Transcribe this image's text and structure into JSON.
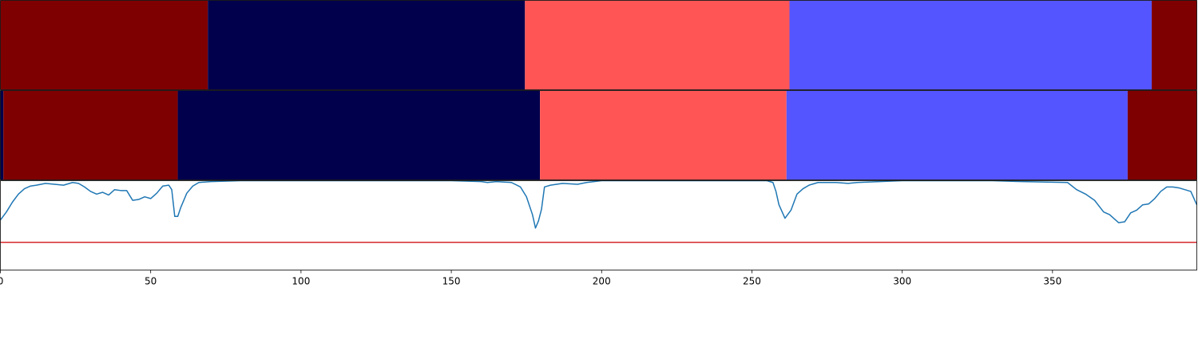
{
  "chart_data": [
    {
      "type": "heatmap",
      "panel": "ground-truth-segments",
      "xlim": [
        0,
        398
      ],
      "segments": [
        {
          "start": 0,
          "end": 69,
          "color": "#7f0000"
        },
        {
          "start": 69,
          "end": 174.5,
          "color": "#00004c"
        },
        {
          "start": 174.5,
          "end": 262.5,
          "color": "#ff5555"
        },
        {
          "start": 262.5,
          "end": 383,
          "color": "#5555ff"
        },
        {
          "start": 383,
          "end": 398,
          "color": "#7f0000"
        }
      ]
    },
    {
      "type": "heatmap",
      "panel": "predicted-segments",
      "xlim": [
        0,
        398
      ],
      "segments": [
        {
          "start": 0,
          "end": 1,
          "color": "#00004c"
        },
        {
          "start": 1,
          "end": 59,
          "color": "#7f0000"
        },
        {
          "start": 59,
          "end": 179.5,
          "color": "#00004c"
        },
        {
          "start": 179.5,
          "end": 261.5,
          "color": "#ff5555"
        },
        {
          "start": 261.5,
          "end": 375,
          "color": "#5555ff"
        },
        {
          "start": 375,
          "end": 398,
          "color": "#7f0000"
        }
      ]
    },
    {
      "type": "line",
      "panel": "confidence",
      "xlim": [
        0,
        398
      ],
      "ylim": [
        0,
        1
      ],
      "xticks": [
        0,
        50,
        100,
        150,
        200,
        250,
        300,
        350
      ],
      "threshold": {
        "value": 0.31,
        "color": "#d62728"
      },
      "series": [
        {
          "color": "#1f77b4",
          "points": [
            [
              0,
              0.56
            ],
            [
              2,
              0.65
            ],
            [
              4,
              0.76
            ],
            [
              6,
              0.85
            ],
            [
              8,
              0.91
            ],
            [
              10,
              0.94
            ],
            [
              12,
              0.95
            ],
            [
              15,
              0.97
            ],
            [
              18,
              0.96
            ],
            [
              21,
              0.95
            ],
            [
              24,
              0.98
            ],
            [
              26,
              0.97
            ],
            [
              28,
              0.93
            ],
            [
              30,
              0.88
            ],
            [
              32,
              0.85
            ],
            [
              34,
              0.87
            ],
            [
              36,
              0.84
            ],
            [
              38,
              0.9
            ],
            [
              40,
              0.89
            ],
            [
              42,
              0.89
            ],
            [
              44,
              0.78
            ],
            [
              46,
              0.79
            ],
            [
              48,
              0.82
            ],
            [
              50,
              0.8
            ],
            [
              52,
              0.86
            ],
            [
              54,
              0.94
            ],
            [
              56,
              0.95
            ],
            [
              57,
              0.9
            ],
            [
              58,
              0.6
            ],
            [
              59,
              0.6
            ],
            [
              60,
              0.7
            ],
            [
              62,
              0.86
            ],
            [
              64,
              0.94
            ],
            [
              66,
              0.98
            ],
            [
              70,
              0.99
            ],
            [
              80,
              1.0
            ],
            [
              100,
              1.0
            ],
            [
              130,
              1.0
            ],
            [
              150,
              1.0
            ],
            [
              160,
              0.99
            ],
            [
              162,
              0.98
            ],
            [
              165,
              0.99
            ],
            [
              170,
              0.98
            ],
            [
              173,
              0.93
            ],
            [
              175,
              0.82
            ],
            [
              177,
              0.62
            ],
            [
              178,
              0.47
            ],
            [
              179,
              0.55
            ],
            [
              180,
              0.68
            ],
            [
              181,
              0.93
            ],
            [
              183,
              0.95
            ],
            [
              187,
              0.97
            ],
            [
              192,
              0.96
            ],
            [
              195,
              0.98
            ],
            [
              200,
              1.0
            ],
            [
              230,
              1.0
            ],
            [
              255,
              1.0
            ],
            [
              257,
              0.98
            ],
            [
              258,
              0.88
            ],
            [
              259,
              0.73
            ],
            [
              261,
              0.58
            ],
            [
              263,
              0.67
            ],
            [
              265,
              0.85
            ],
            [
              267,
              0.91
            ],
            [
              269,
              0.95
            ],
            [
              272,
              0.98
            ],
            [
              278,
              0.98
            ],
            [
              282,
              0.97
            ],
            [
              285,
              0.98
            ],
            [
              300,
              1.0
            ],
            [
              330,
              1.0
            ],
            [
              340,
              0.99
            ],
            [
              355,
              0.98
            ],
            [
              358,
              0.9
            ],
            [
              361,
              0.85
            ],
            [
              364,
              0.78
            ],
            [
              367,
              0.65
            ],
            [
              369,
              0.62
            ],
            [
              371,
              0.56
            ],
            [
              372,
              0.53
            ],
            [
              374,
              0.54
            ],
            [
              376,
              0.64
            ],
            [
              378,
              0.67
            ],
            [
              380,
              0.73
            ],
            [
              382,
              0.74
            ],
            [
              384,
              0.8
            ],
            [
              386,
              0.88
            ],
            [
              388,
              0.93
            ],
            [
              390,
              0.93
            ],
            [
              392,
              0.92
            ],
            [
              394,
              0.9
            ],
            [
              396,
              0.88
            ],
            [
              398,
              0.73
            ]
          ]
        }
      ]
    }
  ]
}
